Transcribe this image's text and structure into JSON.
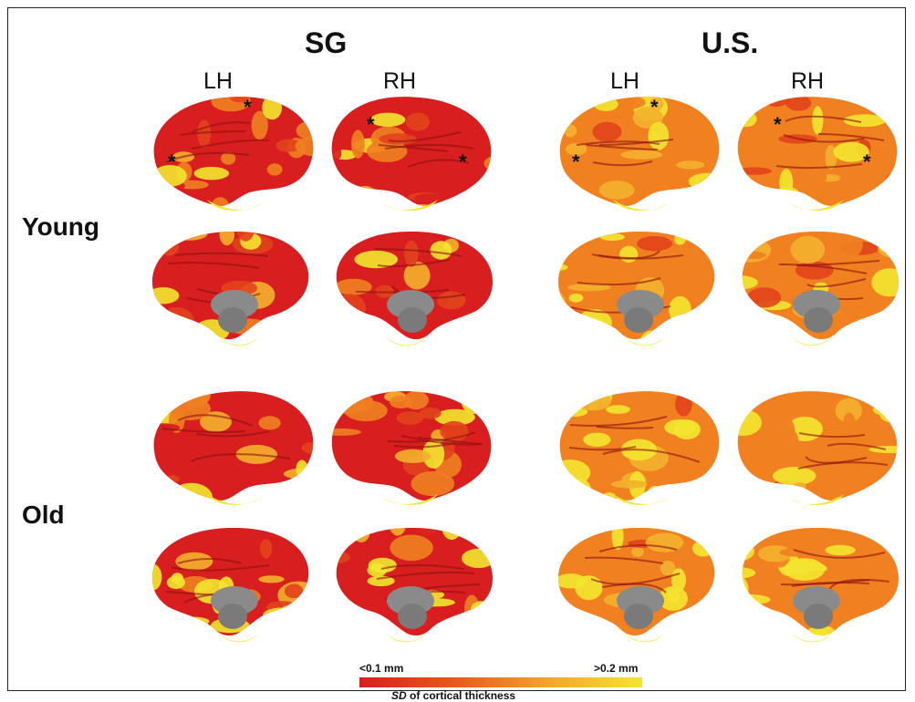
{
  "groups": [
    {
      "title": "SG",
      "hemis": [
        "LH",
        "RH"
      ]
    },
    {
      "title": "U.S.",
      "hemis": [
        "LH",
        "RH"
      ]
    }
  ],
  "rows": [
    {
      "label": "Young"
    },
    {
      "label": "Old"
    }
  ],
  "colors": {
    "low": "#d81e1e",
    "mid": "#f08020",
    "high": "#f3e62f",
    "medial_wall": "#8a8a8a"
  },
  "colorbar": {
    "min_label": "<0.1 mm",
    "max_label": ">0.2 mm",
    "caption_italic": "SD",
    "caption_rest": " of cortical thickness"
  },
  "annotations": {
    "marker": "*"
  }
}
